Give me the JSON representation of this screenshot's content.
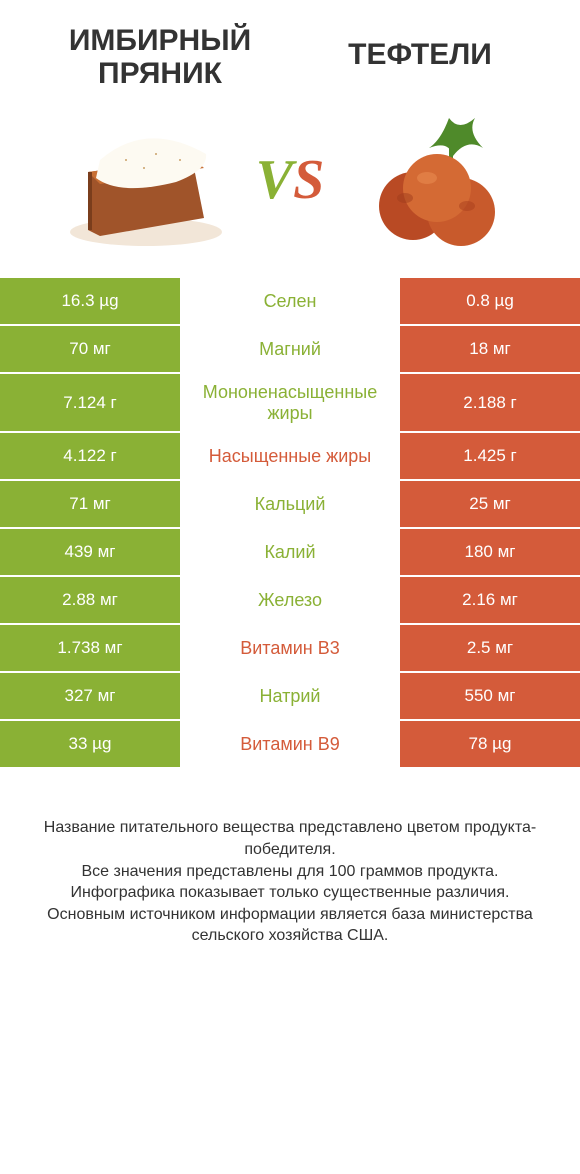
{
  "colors": {
    "left": "#8ab135",
    "right": "#d45b3a",
    "text": "#333333",
    "bg": "#ffffff",
    "cell_text": "#ffffff"
  },
  "typography": {
    "title_fontsize": 30,
    "title_weight": 700,
    "vs_fontsize": 56,
    "body_fontsize": 18,
    "footnote_fontsize": 16
  },
  "header": {
    "left_title_line1": "ИМБИРНЫЙ",
    "left_title_line2": "ПРЯНИК",
    "right_title": "ТЕФТЕЛИ",
    "vs": "VS"
  },
  "table": {
    "columns": [
      "left_value",
      "label",
      "right_value",
      "winner"
    ],
    "rows": [
      {
        "left": "16.3 µg",
        "label": "Селен",
        "right": "0.8 µg",
        "winner": "left"
      },
      {
        "left": "70 мг",
        "label": "Магний",
        "right": "18 мг",
        "winner": "left"
      },
      {
        "left": "7.124 г",
        "label": "Мононенасыщенные жиры",
        "right": "2.188 г",
        "winner": "left"
      },
      {
        "left": "4.122 г",
        "label": "Насыщенные жиры",
        "right": "1.425 г",
        "winner": "right"
      },
      {
        "left": "71 мг",
        "label": "Кальций",
        "right": "25 мг",
        "winner": "left"
      },
      {
        "left": "439 мг",
        "label": "Калий",
        "right": "180 мг",
        "winner": "left"
      },
      {
        "left": "2.88 мг",
        "label": "Железо",
        "right": "2.16 мг",
        "winner": "left"
      },
      {
        "left": "1.738 мг",
        "label": "Витамин B3",
        "right": "2.5 мг",
        "winner": "right"
      },
      {
        "left": "327 мг",
        "label": "Натрий",
        "right": "550 мг",
        "winner": "left"
      },
      {
        "left": "33 µg",
        "label": "Витамин B9",
        "right": "78 µg",
        "winner": "right"
      }
    ]
  },
  "footnote": {
    "line1": "Название питательного вещества представлено цветом продукта-победителя.",
    "line2": "Все значения представлены для 100 граммов продукта.",
    "line3": "Инфографика показывает только существенные различия.",
    "line4": "Основным источником информации является база министерства сельского хозяйства США."
  },
  "images": {
    "left_alt": "gingerbread-cake",
    "right_alt": "meatballs"
  }
}
